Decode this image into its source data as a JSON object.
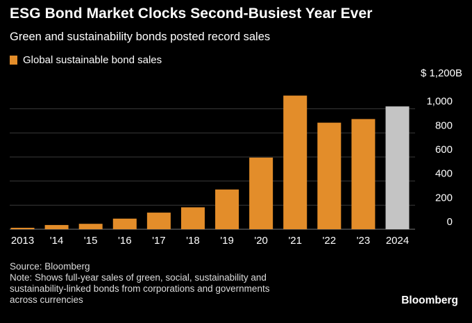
{
  "title": "ESG Bond Market Clocks Second-Busiest Year Ever",
  "subtitle": "Green and sustainability bonds posted record sales",
  "legend": {
    "label": "Global sustainable bond sales",
    "color": "#e38d2a"
  },
  "unit_label": "$ 1,200B",
  "footer": {
    "source": "Source: Bloomberg",
    "note_lines": [
      "Note: Shows full-year sales of green, social, sustainability and",
      "sustainability-linked bonds from corporations and governments",
      "across currencies"
    ]
  },
  "brand": "Bloomberg",
  "colors": {
    "bar": "#e38d2a",
    "highlight": "#c4c4c4",
    "grid": "#3a3a3a",
    "background": "#000000"
  },
  "chart_data": {
    "type": "bar",
    "categories": [
      "2013",
      "'14",
      "'15",
      "'16",
      "'17",
      "'18",
      "'19",
      "'20",
      "'21",
      "'22",
      "'23",
      "2024"
    ],
    "values": [
      12,
      35,
      45,
      88,
      138,
      182,
      330,
      595,
      1110,
      885,
      915,
      1020
    ],
    "highlight_category": "2024",
    "ylim": [
      0,
      1200
    ],
    "yticks": [
      0,
      200,
      400,
      600,
      800,
      1000
    ],
    "ytick_labels": [
      "0",
      "200",
      "400",
      "600",
      "800",
      "1,000"
    ],
    "title": "ESG Bond Market Clocks Second-Busiest Year Ever",
    "xlabel": "",
    "ylabel": "",
    "grid": true,
    "legend_position": "top-left"
  }
}
